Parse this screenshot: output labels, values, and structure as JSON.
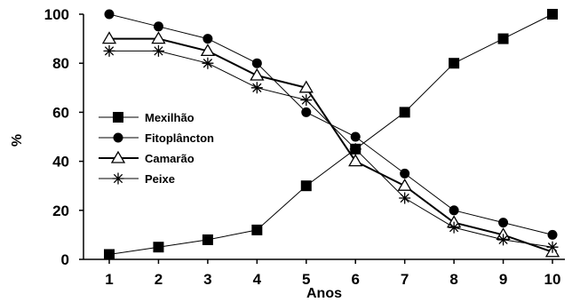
{
  "chart_data": {
    "type": "line",
    "xlabel": "Anos",
    "ylabel": "%",
    "x": [
      1,
      2,
      3,
      4,
      5,
      6,
      7,
      8,
      9,
      10
    ],
    "xlim": [
      1,
      10
    ],
    "ylim": [
      0,
      100
    ],
    "yticks": [
      0,
      20,
      40,
      60,
      80,
      100
    ],
    "grid": false,
    "legend_position": "left",
    "series": [
      {
        "name": "Mexilhão",
        "marker": "square",
        "color": "#000000",
        "values": [
          2,
          5,
          8,
          12,
          30,
          45,
          60,
          80,
          90,
          100
        ]
      },
      {
        "name": "Fitoplâncton",
        "marker": "circle",
        "color": "#000000",
        "values": [
          100,
          95,
          90,
          80,
          60,
          50,
          35,
          20,
          15,
          10
        ]
      },
      {
        "name": "Camarão",
        "marker": "triangle",
        "color": "#000000",
        "values": [
          90,
          90,
          85,
          75,
          70,
          40,
          30,
          15,
          10,
          3
        ]
      },
      {
        "name": "Peixe",
        "marker": "asterisk",
        "color": "#000000",
        "values": [
          85,
          85,
          80,
          70,
          65,
          45,
          25,
          13,
          8,
          5
        ]
      }
    ]
  }
}
